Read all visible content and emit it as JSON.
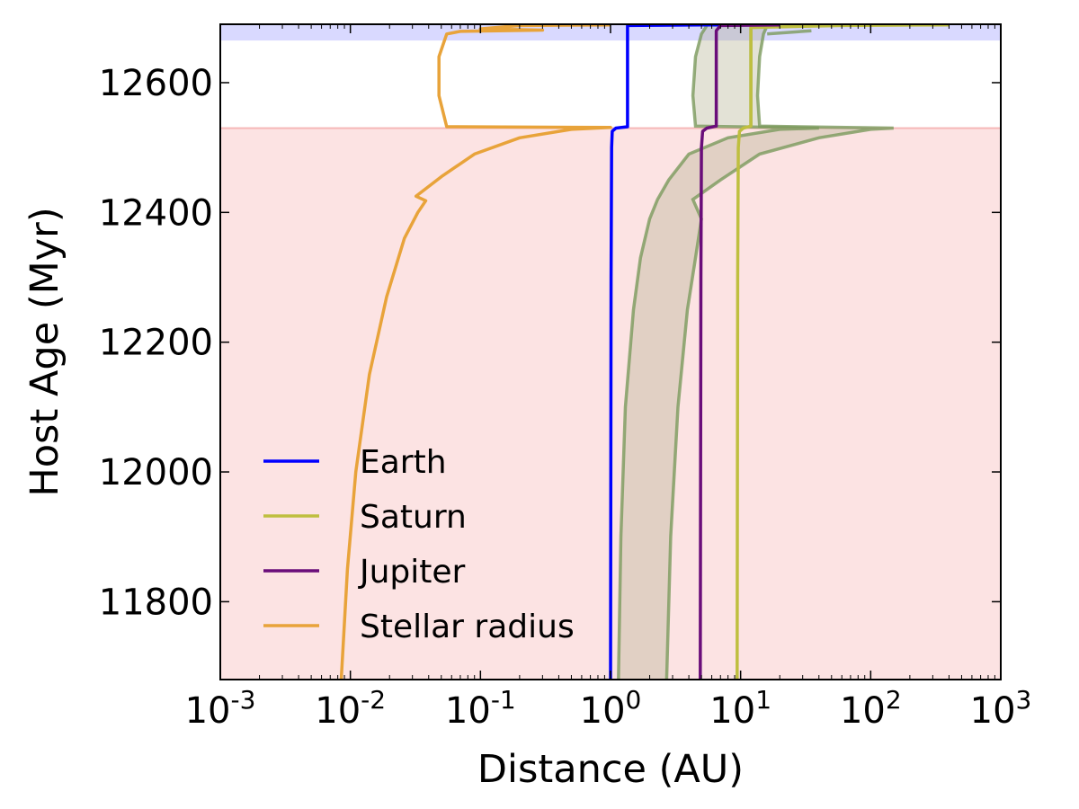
{
  "chart_data": {
    "type": "line",
    "title": "",
    "xlabel": "Distance (AU)",
    "ylabel": "Host Age (Myr)",
    "xscale": "log",
    "xlim": [
      0.001,
      1000
    ],
    "ylim": [
      11680,
      12690
    ],
    "x_ticks": [
      {
        "base": "10",
        "exp": "-3",
        "value": 0.001
      },
      {
        "base": "10",
        "exp": "-2",
        "value": 0.01
      },
      {
        "base": "10",
        "exp": "-1",
        "value": 0.1
      },
      {
        "base": "10",
        "exp": "0",
        "value": 1
      },
      {
        "base": "10",
        "exp": "1",
        "value": 10
      },
      {
        "base": "10",
        "exp": "2",
        "value": 100
      },
      {
        "base": "10",
        "exp": "3",
        "value": 1000
      }
    ],
    "y_ticks": [
      "11800",
      "12000",
      "12200",
      "12400",
      "12600"
    ],
    "grid": false,
    "legend_placement": "lower-left",
    "shaded_regions": [
      {
        "axis": "y",
        "from": 11680,
        "to": 12530,
        "color": "#f08080",
        "opacity": 0.22
      },
      {
        "axis": "y",
        "from": 12665,
        "to": 12690,
        "color": "#8080ff",
        "opacity": 0.3
      }
    ],
    "bands": [
      {
        "color": "#7a9a5c",
        "fill": "#b0ad8a",
        "fill_opacity": 0.35,
        "lower": [
          {
            "x": 1.15,
            "y": 11680
          },
          {
            "x": 1.2,
            "y": 11900
          },
          {
            "x": 1.3,
            "y": 12100
          },
          {
            "x": 1.5,
            "y": 12250
          },
          {
            "x": 1.7,
            "y": 12330
          },
          {
            "x": 2.0,
            "y": 12390
          },
          {
            "x": 2.3,
            "y": 12420
          },
          {
            "x": 2.8,
            "y": 12450
          },
          {
            "x": 4.0,
            "y": 12490
          },
          {
            "x": 8.0,
            "y": 12515
          },
          {
            "x": 20,
            "y": 12528
          },
          {
            "x": 40,
            "y": 12530
          },
          {
            "x": 4.5,
            "y": 12533
          },
          {
            "x": 4.3,
            "y": 12580
          },
          {
            "x": 4.5,
            "y": 12640
          },
          {
            "x": 5.0,
            "y": 12675
          },
          {
            "x": 5.5,
            "y": 12688
          }
        ],
        "upper": [
          {
            "x": 2.7,
            "y": 11680
          },
          {
            "x": 2.9,
            "y": 11900
          },
          {
            "x": 3.3,
            "y": 12100
          },
          {
            "x": 3.9,
            "y": 12250
          },
          {
            "x": 4.5,
            "y": 12330
          },
          {
            "x": 5.0,
            "y": 12390
          },
          {
            "x": 4.3,
            "y": 12420
          },
          {
            "x": 7.0,
            "y": 12450
          },
          {
            "x": 14,
            "y": 12490
          },
          {
            "x": 40,
            "y": 12515
          },
          {
            "x": 100,
            "y": 12528
          },
          {
            "x": 150,
            "y": 12530
          },
          {
            "x": 14,
            "y": 12533
          },
          {
            "x": 13.5,
            "y": 12580
          },
          {
            "x": 14,
            "y": 12640
          },
          {
            "x": 15,
            "y": 12675
          },
          {
            "x": 16,
            "y": 12688
          }
        ]
      },
      {
        "color": "#7a9a5c",
        "fill": "#b0ad8a",
        "fill_opacity": 0.0,
        "lower": [
          {
            "x": 12,
            "y": 12533
          },
          {
            "x": 12,
            "y": 12688
          }
        ],
        "upper": [
          {
            "x": 16,
            "y": 12675
          },
          {
            "x": 35,
            "y": 12680
          }
        ]
      }
    ],
    "series": [
      {
        "name": "Earth",
        "color": "#0000ff",
        "points": [
          {
            "x": 1.0,
            "y": 11680
          },
          {
            "x": 1.01,
            "y": 12300
          },
          {
            "x": 1.02,
            "y": 12500
          },
          {
            "x": 1.03,
            "y": 12525
          },
          {
            "x": 1.1,
            "y": 12530
          },
          {
            "x": 1.35,
            "y": 12532
          },
          {
            "x": 1.35,
            "y": 12688
          },
          {
            "x": 5,
            "y": 12689
          },
          {
            "x": 14,
            "y": 12689
          }
        ]
      },
      {
        "name": "Saturn",
        "color": "#bfbf3f",
        "points": [
          {
            "x": 9.4,
            "y": 11680
          },
          {
            "x": 9.5,
            "y": 12300
          },
          {
            "x": 9.6,
            "y": 12500
          },
          {
            "x": 9.8,
            "y": 12525
          },
          {
            "x": 10.5,
            "y": 12530
          },
          {
            "x": 12.0,
            "y": 12533
          },
          {
            "x": 12.0,
            "y": 12685
          },
          {
            "x": 60,
            "y": 12688
          },
          {
            "x": 400,
            "y": 12689
          }
        ]
      },
      {
        "name": "Jupiter",
        "color": "#6a0d7a",
        "points": [
          {
            "x": 4.9,
            "y": 11680
          },
          {
            "x": 4.95,
            "y": 12300
          },
          {
            "x": 5.0,
            "y": 12500
          },
          {
            "x": 5.1,
            "y": 12525
          },
          {
            "x": 5.5,
            "y": 12530
          },
          {
            "x": 6.5,
            "y": 12533
          },
          {
            "x": 6.5,
            "y": 12680
          },
          {
            "x": 7,
            "y": 12688
          },
          {
            "x": 20,
            "y": 12689
          }
        ]
      },
      {
        "name": "Stellar radius",
        "color": "#e8a33a",
        "points": [
          {
            "x": 0.0085,
            "y": 11680
          },
          {
            "x": 0.0095,
            "y": 11850
          },
          {
            "x": 0.011,
            "y": 12000
          },
          {
            "x": 0.014,
            "y": 12150
          },
          {
            "x": 0.019,
            "y": 12270
          },
          {
            "x": 0.026,
            "y": 12360
          },
          {
            "x": 0.033,
            "y": 12400
          },
          {
            "x": 0.038,
            "y": 12418
          },
          {
            "x": 0.032,
            "y": 12425
          },
          {
            "x": 0.05,
            "y": 12455
          },
          {
            "x": 0.09,
            "y": 12490
          },
          {
            "x": 0.2,
            "y": 12515
          },
          {
            "x": 0.5,
            "y": 12528
          },
          {
            "x": 1.0,
            "y": 12531
          },
          {
            "x": 0.055,
            "y": 12532
          },
          {
            "x": 0.048,
            "y": 12580
          },
          {
            "x": 0.048,
            "y": 12640
          },
          {
            "x": 0.055,
            "y": 12675
          },
          {
            "x": 0.07,
            "y": 12679
          },
          {
            "x": 0.3,
            "y": 12681
          },
          {
            "x": 0.1,
            "y": 12683
          },
          {
            "x": 0.2,
            "y": 12688
          },
          {
            "x": 1.0,
            "y": 12689
          }
        ]
      }
    ],
    "legend": [
      {
        "label": "Earth",
        "color": "#0000ff"
      },
      {
        "label": "Saturn",
        "color": "#bfbf3f"
      },
      {
        "label": "Jupiter",
        "color": "#6a0d7a"
      },
      {
        "label": "Stellar radius",
        "color": "#e8a33a"
      }
    ]
  }
}
